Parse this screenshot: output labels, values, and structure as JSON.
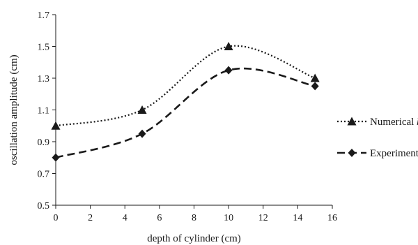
{
  "chart_data": {
    "type": "line",
    "title": "",
    "xlabel": "depth of cylinder (cm)",
    "ylabel": "oscillation amplitude (cm)",
    "xlim": [
      0,
      16
    ],
    "ylim": [
      0.5,
      1.7
    ],
    "xticks": [
      0,
      2,
      4,
      6,
      8,
      10,
      12,
      14,
      16
    ],
    "yticks": [
      0.5,
      0.7,
      0.9,
      1.1,
      1.3,
      1.5,
      1.7
    ],
    "grid": false,
    "legend_position": "right",
    "smooth": true,
    "series": [
      {
        "name_main": "Numerical ",
        "name_italic": "k-w",
        "style": "dotted",
        "marker": "triangle",
        "x": [
          0,
          5,
          10,
          15
        ],
        "y": [
          1.0,
          1.1,
          1.5,
          1.3
        ]
      },
      {
        "name_main": "Experimental",
        "name_italic": "",
        "style": "dashed",
        "marker": "diamond",
        "x": [
          0,
          5,
          10,
          15
        ],
        "y": [
          0.8,
          0.95,
          1.35,
          1.25
        ]
      }
    ]
  }
}
